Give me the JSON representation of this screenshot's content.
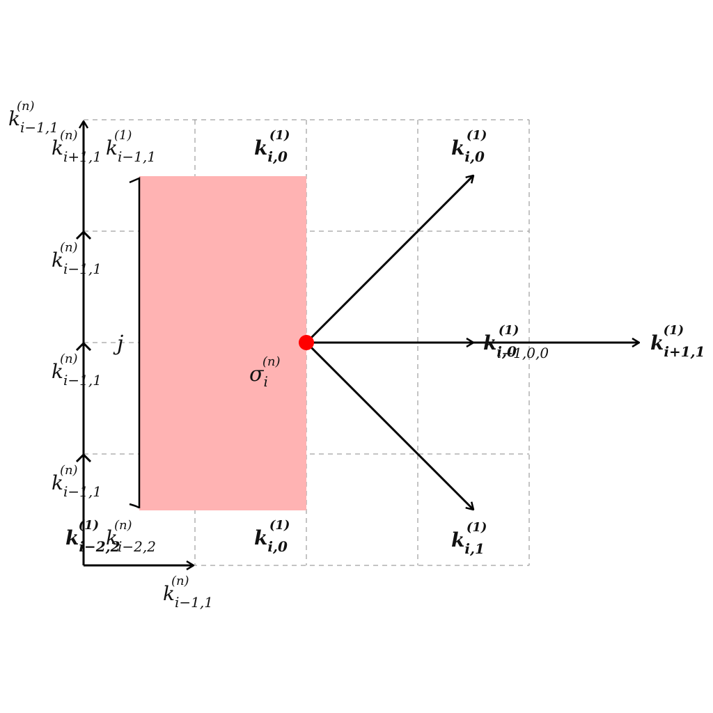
{
  "colors": {
    "cell_fill": "#ffb3b3",
    "point": "#ff0000",
    "grid": "#888888",
    "axis": "#000000"
  },
  "center_point_label": {
    "base": "σ",
    "sub": "i",
    "sup": "(n)"
  },
  "bracket_label": "j",
  "corner_top_left_label": {
    "base": "k",
    "sub": "i−1,1",
    "sup": "(n)"
  },
  "top_left_stacked_labels": [
    {
      "base": "k",
      "sub": "i+1,1",
      "sup": "(n)"
    },
    {
      "base": "k",
      "sub": "i−1,1",
      "sup": "(1)"
    }
  ],
  "top_middle_label": {
    "base": "k",
    "sub": "i,0",
    "sup": "(1)"
  },
  "left_axis_labels": [
    {
      "base": "k",
      "sub": "i−1,1",
      "sup": "(n)"
    },
    {
      "base": "k",
      "sub": "i−1,1",
      "sup": "(n)"
    },
    {
      "base": "k",
      "sub": "i−1,1",
      "sup": "(n)"
    }
  ],
  "bottom_left_stacked_labels": [
    {
      "base": "k",
      "sub": "i−2,2",
      "sup": "(1)"
    },
    {
      "base": "k",
      "sub": "i−2,2",
      "sup": "(n)"
    }
  ],
  "bottom_middle_label": {
    "base": "k",
    "sub": "i,0",
    "sup": "(1)"
  },
  "bottom_axis_label": {
    "base": "k",
    "sub": "i−1,1",
    "sup": "(n)"
  },
  "arrow_labels": {
    "upper_right": {
      "base": "k",
      "sub": "i,0",
      "sup": "(1)"
    },
    "right_short": {
      "base": "k",
      "sub": "i,0",
      "sup": "(1)",
      "overlap_sub": "i−1,0,0"
    },
    "right_long": {
      "base": "k",
      "sub": "i+1,1",
      "sup": "(1)"
    },
    "lower_right": {
      "base": "k",
      "sub": "i,1",
      "sup": "(1)"
    }
  }
}
